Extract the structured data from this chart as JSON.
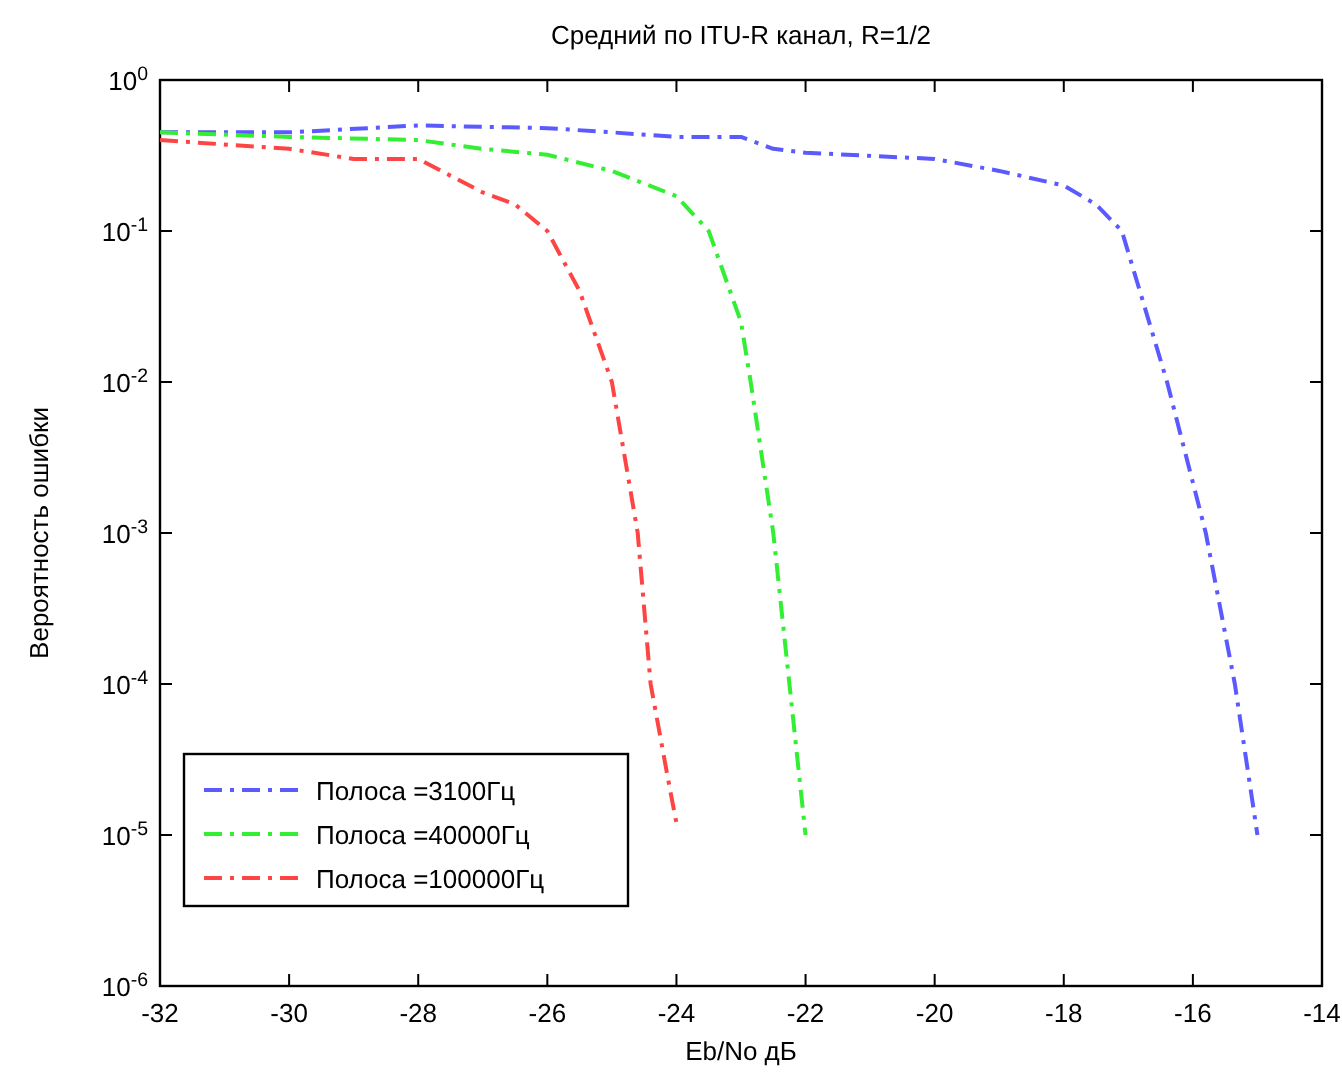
{
  "chart_data": {
    "type": "line",
    "title": "Средний по ITU-R канал, R=1/2",
    "xlabel": "Eb/No дБ",
    "ylabel": "Вероятность ошибки",
    "log": "y",
    "grid": false,
    "legend": "bottom left",
    "line_style": "dashdot",
    "marker": "none",
    "xlim": [
      -32,
      -14
    ],
    "xticks": [
      -32,
      -30,
      -28,
      -26,
      -24,
      -22,
      -20,
      -18,
      -16,
      -14
    ],
    "ylim": [
      1e-06,
      1
    ],
    "yticks": [
      {
        "value": 1e-06,
        "label": "10$^{-6}$"
      },
      {
        "value": 1e-05,
        "label": "10$^{-5}$"
      },
      {
        "value": 0.0001,
        "label": "10$^{-4}$"
      },
      {
        "value": 0.001,
        "label": "10$^{-3}$"
      },
      {
        "value": 0.01,
        "label": "10$^{-2}$"
      },
      {
        "value": 0.1,
        "label": "10$^{-1}$"
      },
      {
        "value": 1,
        "label": "10$^{0}$"
      }
    ],
    "series": [
      {
        "name": "Полоса =3100Гц",
        "color": "#5a5aff",
        "x": [
          -32,
          -30,
          -28,
          -26,
          -25,
          -24,
          -23,
          -22.5,
          -22,
          -20,
          -19,
          -18,
          -17.5,
          -17.1,
          -16.4,
          -15.8,
          -15.35,
          -15
        ],
        "values": [
          0.45,
          0.45,
          0.5,
          0.48,
          0.45,
          0.42,
          0.42,
          0.35,
          0.33,
          0.3,
          0.25,
          0.2,
          0.15,
          0.1,
          0.01,
          0.001,
          0.0001,
          1e-05
        ]
      },
      {
        "name": "Полоса =40000Гц",
        "color": "#33ee33",
        "x": [
          -32,
          -30,
          -28,
          -27,
          -26,
          -25,
          -24,
          -23.5,
          -23,
          -22.85,
          -22.5,
          -22.25,
          -22
        ],
        "values": [
          0.45,
          0.42,
          0.4,
          0.35,
          0.32,
          0.25,
          0.17,
          0.1,
          0.025,
          0.01,
          0.001,
          0.0001,
          1e-05
        ]
      },
      {
        "name": "Полоса =100000Гц",
        "color": "#ff4444",
        "x": [
          -32,
          -30,
          -29,
          -28,
          -27,
          -26.5,
          -26,
          -25.5,
          -25,
          -24.6,
          -24.4,
          -24.1,
          -24
        ],
        "values": [
          0.4,
          0.35,
          0.3,
          0.3,
          0.18,
          0.15,
          0.1,
          0.04,
          0.01,
          0.001,
          0.0001,
          2e-05,
          1.2e-05
        ]
      }
    ]
  }
}
